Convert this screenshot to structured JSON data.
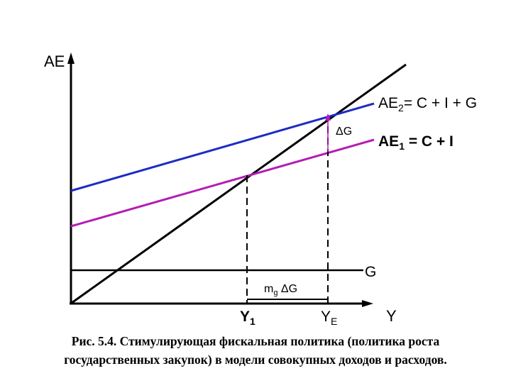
{
  "diagram": {
    "y_axis_label": "AE",
    "x_axis_label": "Y",
    "ae2_label": {
      "main": "AE",
      "sub": "2",
      "rest": "= C + I + G"
    },
    "ae1_label": {
      "main": "AE",
      "sub": "1",
      "rest": " = C + I"
    },
    "delta_g_label": "ΔG",
    "g_label": "G",
    "multiplier_label": {
      "main": "m",
      "sub": "g",
      "rest": " ΔG"
    },
    "y1_label": {
      "main": "Y",
      "sub": "1"
    },
    "ye_label": {
      "main": "Y",
      "sub": "E"
    },
    "colors": {
      "ae2": "#1c2cc4",
      "ae1": "#b41cb4",
      "axes": "#000000",
      "delta_g": "#b41cb4"
    }
  },
  "caption": {
    "line1": "Рис. 5.4. Стимулирующая  фискальная политика (политика роста",
    "line2": "государственных закупок) в модели совокупных доходов и расходов."
  }
}
